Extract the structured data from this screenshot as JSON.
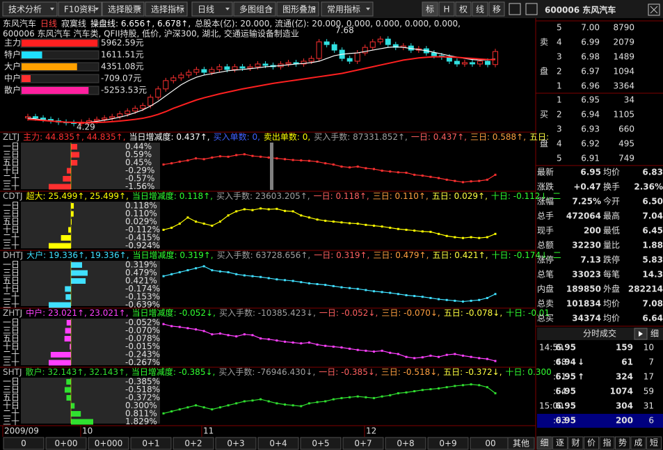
{
  "toolbar": {
    "buttons": [
      "技术分析",
      "F10资料",
      "选择股票",
      "选择指标",
      "日线",
      "多图组合",
      "图形叠加",
      "常用指标"
    ],
    "tools": [
      "标",
      "H",
      "权",
      "线",
      "移"
    ],
    "stock": "600006 东风汽车"
  },
  "header": {
    "line1": [
      {
        "text": "东风汽车",
        "color": "#e0e0e0"
      },
      {
        "text": "日线",
        "color": "#ff4040"
      },
      {
        "text": "寂寞线",
        "color": "#e0e0e0"
      },
      {
        "text": "操盘线: 6.656↑, 6.678↑,",
        "color": "#ffffff"
      },
      {
        "text": "总股本(亿): 20.000, 流通(亿): 20.000, 0.000, 0.000, 0.000, 0.000,",
        "color": "#e0e0e0"
      }
    ],
    "line2": "600006 东风汽车 汽车类, QFII持股, 低价, 沪深300, 湖北, 交通运输设备制造业",
    "legend": [
      {
        "name": "主力",
        "value": 5962.59,
        "label": "5962.59元",
        "color": "#ff2020"
      },
      {
        "name": "特户",
        "value": 1611.51,
        "label": "1611.51元",
        "color": "#20e0ff"
      },
      {
        "name": "大户",
        "value": 4351.08,
        "label": "4351.08元",
        "color": "#ffa000"
      },
      {
        "name": "中户",
        "value": -709.07,
        "label": "-709.07元",
        "color": "#ff3030"
      },
      {
        "name": "散户",
        "value": -5253.53,
        "label": "-5253.53元",
        "color": "#ff20a0"
      }
    ],
    "high": "7.68",
    "low": "4.29"
  },
  "price": {
    "ylim": [
      4.29,
      7.68
    ],
    "closes": [
      4.6,
      4.55,
      4.5,
      4.45,
      4.4,
      4.38,
      4.35,
      4.4,
      4.45,
      4.5,
      4.55,
      4.6,
      4.7,
      4.8,
      4.9,
      5.0,
      5.3,
      5.6,
      5.9,
      6.0,
      6.1,
      6.2,
      6.3,
      6.2,
      6.3,
      6.4,
      6.3,
      6.4,
      6.35,
      6.4,
      6.5,
      6.45,
      6.4,
      6.5,
      6.55,
      6.5,
      6.6,
      6.7,
      7.3,
      7.2,
      7.0,
      6.7,
      6.6,
      6.9,
      7.1,
      7.3,
      7.4,
      7.2,
      7.1,
      7.15,
      7.0,
      7.05,
      6.9,
      6.8,
      6.75,
      6.6,
      6.5,
      6.55,
      6.5,
      6.6,
      6.48,
      6.95
    ],
    "red": [
      4.5,
      4.48,
      4.46,
      4.44,
      4.42,
      4.4,
      4.39,
      4.38,
      4.38,
      4.39,
      4.4,
      4.42,
      4.44,
      4.47,
      4.5,
      4.54,
      4.6,
      4.68,
      4.78,
      4.9,
      5.0,
      5.1,
      5.2,
      5.28,
      5.35,
      5.42,
      5.48,
      5.54,
      5.6,
      5.65,
      5.7,
      5.75,
      5.8,
      5.84,
      5.88,
      5.92,
      5.96,
      6.0,
      6.04,
      6.08,
      6.12,
      6.16,
      6.22,
      6.28,
      6.34,
      6.4,
      6.46,
      6.52,
      6.58,
      6.64,
      6.68,
      6.72,
      6.74,
      6.76,
      6.76,
      6.75,
      6.74,
      6.72,
      6.7,
      6.68,
      6.66,
      6.656
    ],
    "white": [
      4.55,
      4.52,
      4.48,
      4.45,
      4.42,
      4.4,
      4.38,
      4.38,
      4.4,
      4.43,
      4.47,
      4.52,
      4.58,
      4.65,
      4.74,
      4.84,
      4.98,
      5.15,
      5.35,
      5.55,
      5.75,
      5.9,
      6.02,
      6.1,
      6.15,
      6.2,
      6.25,
      6.28,
      6.3,
      6.33,
      6.36,
      6.4,
      6.42,
      6.44,
      6.47,
      6.5,
      6.52,
      6.55,
      6.6,
      6.7,
      6.8,
      6.85,
      6.88,
      6.9,
      6.95,
      7.0,
      7.05,
      7.1,
      7.12,
      7.1,
      7.06,
      7.02,
      6.98,
      6.92,
      6.86,
      6.8,
      6.75,
      6.7,
      6.66,
      6.64,
      6.65,
      6.678
    ]
  },
  "periods": [
    "一日",
    "三日",
    "五日",
    "十日",
    "二十",
    "三十"
  ],
  "panels": [
    {
      "color": "#ff3030",
      "ylim": [
        0,
        100
      ],
      "header": [
        {
          "text": "ZLTJ",
          "color": "#c0c0c0"
        },
        {
          "text": "主力: 44.835↑, 44.835↑,",
          "color": "#ff3030"
        },
        {
          "text": "当日增减度: 0.437↑,",
          "color": "#ffffff"
        },
        {
          "text": "买入单数: 0,",
          "color": "#4060ff"
        },
        {
          "text": "卖出单数: 0,",
          "color": "#ffff00"
        },
        {
          "text": "买入手数: 87331.852↑,",
          "color": "#a0a0a0"
        },
        {
          "text": "一日: 0.437↑,",
          "color": "#ff6060"
        },
        {
          "text": "三日: 0.588↑,",
          "color": "#ffa040"
        },
        {
          "text": "五日:",
          "color": "#ffff40"
        }
      ],
      "rows": [
        0.44,
        0.59,
        0.45,
        -0.29,
        -0.57,
        -1.56
      ],
      "row_labels": [
        "0.44%",
        "0.59%",
        "0.45%",
        "-0.29%",
        "-0.57%",
        "-1.56%"
      ],
      "curve": [
        55,
        58,
        62,
        65,
        70,
        68,
        72,
        75,
        74,
        78,
        80,
        76,
        74,
        72,
        70,
        68,
        66,
        65,
        64,
        62,
        58,
        55,
        50,
        48,
        50,
        46,
        44,
        40,
        38,
        36,
        35,
        30,
        28,
        25,
        22,
        18,
        15,
        12,
        14,
        15,
        18,
        30
      ]
    },
    {
      "color": "#ffff00",
      "ylim": [
        0,
        100
      ],
      "header": [
        {
          "text": "CDTJ",
          "color": "#c0c0c0"
        },
        {
          "text": "超大: 25.499↑, 25.499↑,",
          "color": "#ffff00"
        },
        {
          "text": "当日增减度: 0.118↑,",
          "color": "#30ff30"
        },
        {
          "text": "买入手数: 23603.205↑,",
          "color": "#a0a0a0"
        },
        {
          "text": "一日: 0.118↑,",
          "color": "#ff6060"
        },
        {
          "text": "三日: 0.110↑,",
          "color": "#ffa040"
        },
        {
          "text": "五日: 0.029↑,",
          "color": "#ffff40"
        },
        {
          "text": "十日: -0.112↓, 二",
          "color": "#30ff30"
        }
      ],
      "rows": [
        0.118,
        0.11,
        0.029,
        -0.112,
        -0.415,
        -0.924
      ],
      "row_labels": [
        "0.118%",
        "0.110%",
        "0.029%",
        "-0.112%",
        "-0.415%",
        "-0.924%"
      ],
      "curve": [
        40,
        45,
        55,
        70,
        60,
        55,
        50,
        60,
        75,
        85,
        90,
        88,
        92,
        90,
        91,
        86,
        85,
        75,
        70,
        65,
        62,
        60,
        58,
        56,
        55,
        52,
        50,
        48,
        45,
        42,
        40,
        38,
        36,
        35,
        30,
        25,
        22,
        20,
        22,
        20,
        22,
        30
      ]
    },
    {
      "color": "#40e0ff",
      "ylim": [
        0,
        100
      ],
      "header": [
        {
          "text": "DHTJ",
          "color": "#c0c0c0"
        },
        {
          "text": "大户: 19.336↑, 19.336↑,",
          "color": "#40e0ff"
        },
        {
          "text": "当日增减度: 0.319↑,",
          "color": "#30ff30"
        },
        {
          "text": "买入手数: 63728.656↑,",
          "color": "#a0a0a0"
        },
        {
          "text": "一日: 0.319↑,",
          "color": "#ff6060"
        },
        {
          "text": "三日: 0.479↑,",
          "color": "#ffa040"
        },
        {
          "text": "五日: 0.421↑,",
          "color": "#ffff40"
        },
        {
          "text": "十日: -0.174↓, 二",
          "color": "#30ff30"
        }
      ],
      "rows": [
        0.319,
        0.479,
        0.421,
        -0.174,
        -0.153,
        -0.639
      ],
      "row_labels": [
        "0.319%",
        "0.479%",
        "0.421%",
        "-0.174%",
        "-0.153%",
        "-0.639%"
      ],
      "curve": [
        70,
        75,
        80,
        85,
        90,
        95,
        85,
        82,
        80,
        75,
        72,
        70,
        68,
        65,
        62,
        60,
        58,
        55,
        52,
        50,
        48,
        45,
        42,
        40,
        38,
        35,
        32,
        30,
        28,
        25,
        22,
        20,
        18,
        15,
        12,
        10,
        8,
        6,
        8,
        10,
        15,
        25
      ]
    },
    {
      "color": "#ff40ff",
      "ylim": [
        0,
        100
      ],
      "header": [
        {
          "text": "ZHTJ",
          "color": "#c0c0c0"
        },
        {
          "text": "中户: 23.021↑, 23.021↑,",
          "color": "#ff40ff"
        },
        {
          "text": "当日增减度: -0.052↓,",
          "color": "#30ff30"
        },
        {
          "text": "买入手数: -10385.423↓,",
          "color": "#a0a0a0"
        },
        {
          "text": "一日: -0.052↓,",
          "color": "#ff6060"
        },
        {
          "text": "三日: -0.070↓,",
          "color": "#ffa040"
        },
        {
          "text": "五日: -0.078↓,",
          "color": "#ffff40"
        },
        {
          "text": "十日: -0.01",
          "color": "#30ff30"
        }
      ],
      "rows": [
        -0.052,
        -0.07,
        -0.078,
        -0.015,
        -0.243,
        -0.267
      ],
      "row_labels": [
        "-0.052%",
        "-0.070%",
        "-0.078%",
        "-0.015%",
        "-0.243%",
        "-0.267%"
      ],
      "curve": [
        95,
        90,
        88,
        85,
        82,
        78,
        70,
        72,
        68,
        65,
        70,
        68,
        60,
        58,
        55,
        52,
        50,
        48,
        50,
        45,
        42,
        40,
        38,
        35,
        32,
        30,
        28,
        30,
        25,
        22,
        15,
        12,
        14,
        18,
        15,
        20,
        22,
        18,
        15,
        12,
        10,
        5
      ]
    },
    {
      "color": "#30e030",
      "ylim": [
        0,
        100
      ],
      "header": [
        {
          "text": "SHTJ",
          "color": "#c0c0c0"
        },
        {
          "text": "散户: 32.143↑, 32.143↑,",
          "color": "#30e030"
        },
        {
          "text": "当日增减度: -0.385↓,",
          "color": "#30ff30"
        },
        {
          "text": "买入手数: -76946.430↓,",
          "color": "#a0a0a0"
        },
        {
          "text": "一日: -0.385↓,",
          "color": "#ff6060"
        },
        {
          "text": "三日: -0.518↓,",
          "color": "#ffa040"
        },
        {
          "text": "五日: -0.372↓,",
          "color": "#ffff40"
        },
        {
          "text": "十日: 0.300",
          "color": "#30ff30"
        }
      ],
      "rows": [
        -0.385,
        -0.518,
        -0.372,
        0.3,
        0.811,
        1.829
      ],
      "row_labels": [
        "-0.385%",
        "-0.518%",
        "-0.372%",
        "0.300%",
        "0.811%",
        "1.829%"
      ],
      "curve": [
        20,
        25,
        30,
        35,
        40,
        35,
        30,
        35,
        40,
        45,
        50,
        52,
        55,
        50,
        45,
        42,
        40,
        38,
        45,
        48,
        50,
        55,
        58,
        60,
        62,
        60,
        58,
        62,
        65,
        70,
        72,
        75,
        78,
        80,
        82,
        85,
        88,
        90,
        92,
        90,
        85,
        70
      ]
    }
  ],
  "dates": [
    "2009/09",
    "10",
    "11",
    "12"
  ],
  "bottom": [
    "0",
    "0+00",
    "0+000",
    "0+1",
    "0+2",
    "0+3",
    "0+4",
    "0+5",
    "0+7",
    "0+8",
    "0+9",
    "00",
    "其他"
  ],
  "book": {
    "sell_label": [
      "卖",
      "盘"
    ],
    "buy_label": [
      "买",
      "盘"
    ],
    "sell": [
      [
        "5",
        "7.00",
        "8790"
      ],
      [
        "4",
        "6.99",
        "2079"
      ],
      [
        "3",
        "6.98",
        "1489"
      ],
      [
        "2",
        "6.97",
        "1094"
      ],
      [
        "1",
        "6.96",
        "3364"
      ]
    ],
    "buy": [
      [
        "1",
        "6.95",
        "34"
      ],
      [
        "2",
        "6.94",
        "1105"
      ],
      [
        "3",
        "6.93",
        "660"
      ],
      [
        "4",
        "6.92",
        "495"
      ],
      [
        "5",
        "6.91",
        "749"
      ]
    ]
  },
  "stats": [
    {
      "cells": [
        "最新",
        "6.95",
        "均价",
        "6.83"
      ],
      "colors": [
        "#ff3030",
        "#ff3030"
      ]
    },
    {
      "cells": [
        "涨跌",
        "+0.47",
        "换手",
        "2.36%"
      ],
      "colors": [
        "#ff3030",
        "#ffff00"
      ]
    },
    {
      "cells": [
        "涨幅",
        "7.25%",
        "今开",
        "6.50"
      ],
      "colors": [
        "#ff3030",
        "#ff3030"
      ]
    },
    {
      "cells": [
        "总手",
        "472064",
        "最高",
        "7.04"
      ],
      "colors": [
        "#ffff00",
        "#ff3030"
      ]
    },
    {
      "cells": [
        "现手",
        "200",
        "最低",
        "6.45"
      ],
      "colors": [
        "#ffff00",
        "#ff3030"
      ]
    },
    {
      "cells": [
        "总额",
        "32230",
        "量比",
        "1.88"
      ],
      "colors": [
        "#40e0ff",
        "#ffffff"
      ]
    },
    {
      "cells": [
        "涨停",
        "7.13",
        "跌停",
        "5.83"
      ],
      "colors": [
        "#ff3030",
        "#30e030"
      ]
    },
    {
      "cells": [
        "总笔",
        "33023",
        "每笔",
        "14.3"
      ],
      "colors": [
        "#e0e0e0",
        "#e0e0e0"
      ]
    },
    {
      "cells": [
        "内盘",
        "189850",
        "外盘",
        "282214"
      ],
      "colors": [
        "#30e030",
        "#ff3030"
      ]
    },
    {
      "cells": [
        "总卖",
        "101834",
        "均价",
        "7.08"
      ],
      "colors": [
        "#ffff00",
        "#ff3030"
      ]
    },
    {
      "cells": [
        "总买",
        "34374",
        "均价",
        "6.64"
      ],
      "colors": [
        "#ffff00",
        "#ff3030"
      ]
    }
  ],
  "ticks": {
    "title": "分时成交",
    "detail": "细",
    "rows": [
      {
        "time": "14:59",
        "price": "6.95",
        "dir": "",
        "vol": "159",
        "count": "10"
      },
      {
        "time": ":48",
        "price": "6.94",
        "dir": "↓",
        "vol": "61",
        "count": "7"
      },
      {
        "time": ":51",
        "price": "6.95",
        "dir": "↑",
        "vol": "324",
        "count": "17"
      },
      {
        "time": ":54",
        "price": "6.95",
        "dir": "",
        "vol": "1074",
        "count": "59"
      },
      {
        "time": "15:00",
        "price": "6.95",
        "dir": "",
        "vol": "304",
        "count": "31"
      },
      {
        "time": ":03",
        "price": "6.95",
        "dir": "",
        "vol": "200",
        "count": "6"
      }
    ]
  },
  "tabs": [
    "细",
    "逐",
    "财",
    "价",
    "指",
    "势",
    "成",
    "短"
  ]
}
